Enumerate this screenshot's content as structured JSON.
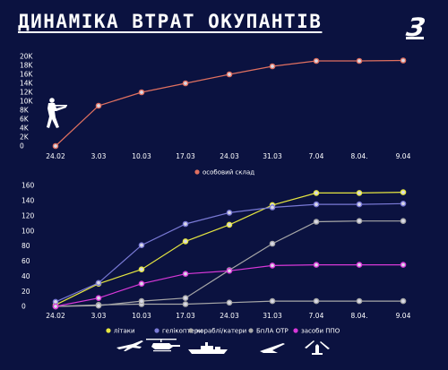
{
  "header": {
    "title": "ДИНАМІКА ВТРАТ ОКУПАНТІВ",
    "logo": "З"
  },
  "chart_data": [
    {
      "type": "line",
      "title": "",
      "xlabel": "",
      "ylabel": "",
      "x": [
        "24.02",
        "3.03",
        "10.03",
        "17.03",
        "24.03",
        "31.03",
        "7.04",
        "8.04.",
        "9.04"
      ],
      "ylim": [
        0,
        20000
      ],
      "yticks": [
        {
          "value": 0,
          "label": "0"
        },
        {
          "value": 2000,
          "label": "2K"
        },
        {
          "value": 4000,
          "label": "4K"
        },
        {
          "value": 6000,
          "label": "6K"
        },
        {
          "value": 8000,
          "label": "8K"
        },
        {
          "value": 10000,
          "label": "10K"
        },
        {
          "value": 12000,
          "label": "12K"
        },
        {
          "value": 14000,
          "label": "14K"
        },
        {
          "value": 16000,
          "label": "16K"
        },
        {
          "value": 18000,
          "label": "18K"
        },
        {
          "value": 20000,
          "label": "20K"
        }
      ],
      "grid": false,
      "legend_position": "bottom",
      "icons": [
        "soldier-icon"
      ],
      "series": [
        {
          "name": "особовий склад",
          "color": "#e07060",
          "values": [
            0,
            9000,
            12000,
            14000,
            16000,
            17800,
            19000,
            19000,
            19100
          ]
        }
      ]
    },
    {
      "type": "line",
      "title": "",
      "xlabel": "",
      "ylabel": "",
      "x": [
        "24.02",
        "3.03",
        "10.03",
        "17.03",
        "24.03",
        "31.03",
        "7.04",
        "8.04.",
        "9.04"
      ],
      "ylim": [
        0,
        160
      ],
      "yticks": [
        0,
        20,
        40,
        60,
        80,
        100,
        120,
        140,
        160
      ],
      "grid": false,
      "legend_position": "bottom",
      "series": [
        {
          "name": "літаки",
          "color": "#e6e640",
          "values": [
            2,
            30,
            49,
            86,
            108,
            134,
            150,
            150,
            151
          ]
        },
        {
          "name": "гелікоптери",
          "color": "#7a7ad6",
          "values": [
            6,
            31,
            81,
            109,
            124,
            131,
            135,
            135,
            136
          ]
        },
        {
          "name": "кораблі/катери",
          "color": "#a8a8a8",
          "values": [
            0,
            2,
            3,
            3,
            5,
            7,
            7,
            7,
            7
          ]
        },
        {
          "name": "БпЛА ОТР",
          "color": "#a8a8a8",
          "values": [
            0,
            1,
            7,
            11,
            48,
            83,
            112,
            113,
            113
          ]
        },
        {
          "name": "засоби ППО",
          "color": "#d838d8",
          "values": [
            0,
            11,
            30,
            43,
            47,
            54,
            55,
            55,
            55
          ]
        }
      ],
      "legend_icons": [
        "plane-icon",
        "helicopter-icon",
        "ship-icon",
        "drone-icon",
        "missile-icon"
      ]
    }
  ]
}
